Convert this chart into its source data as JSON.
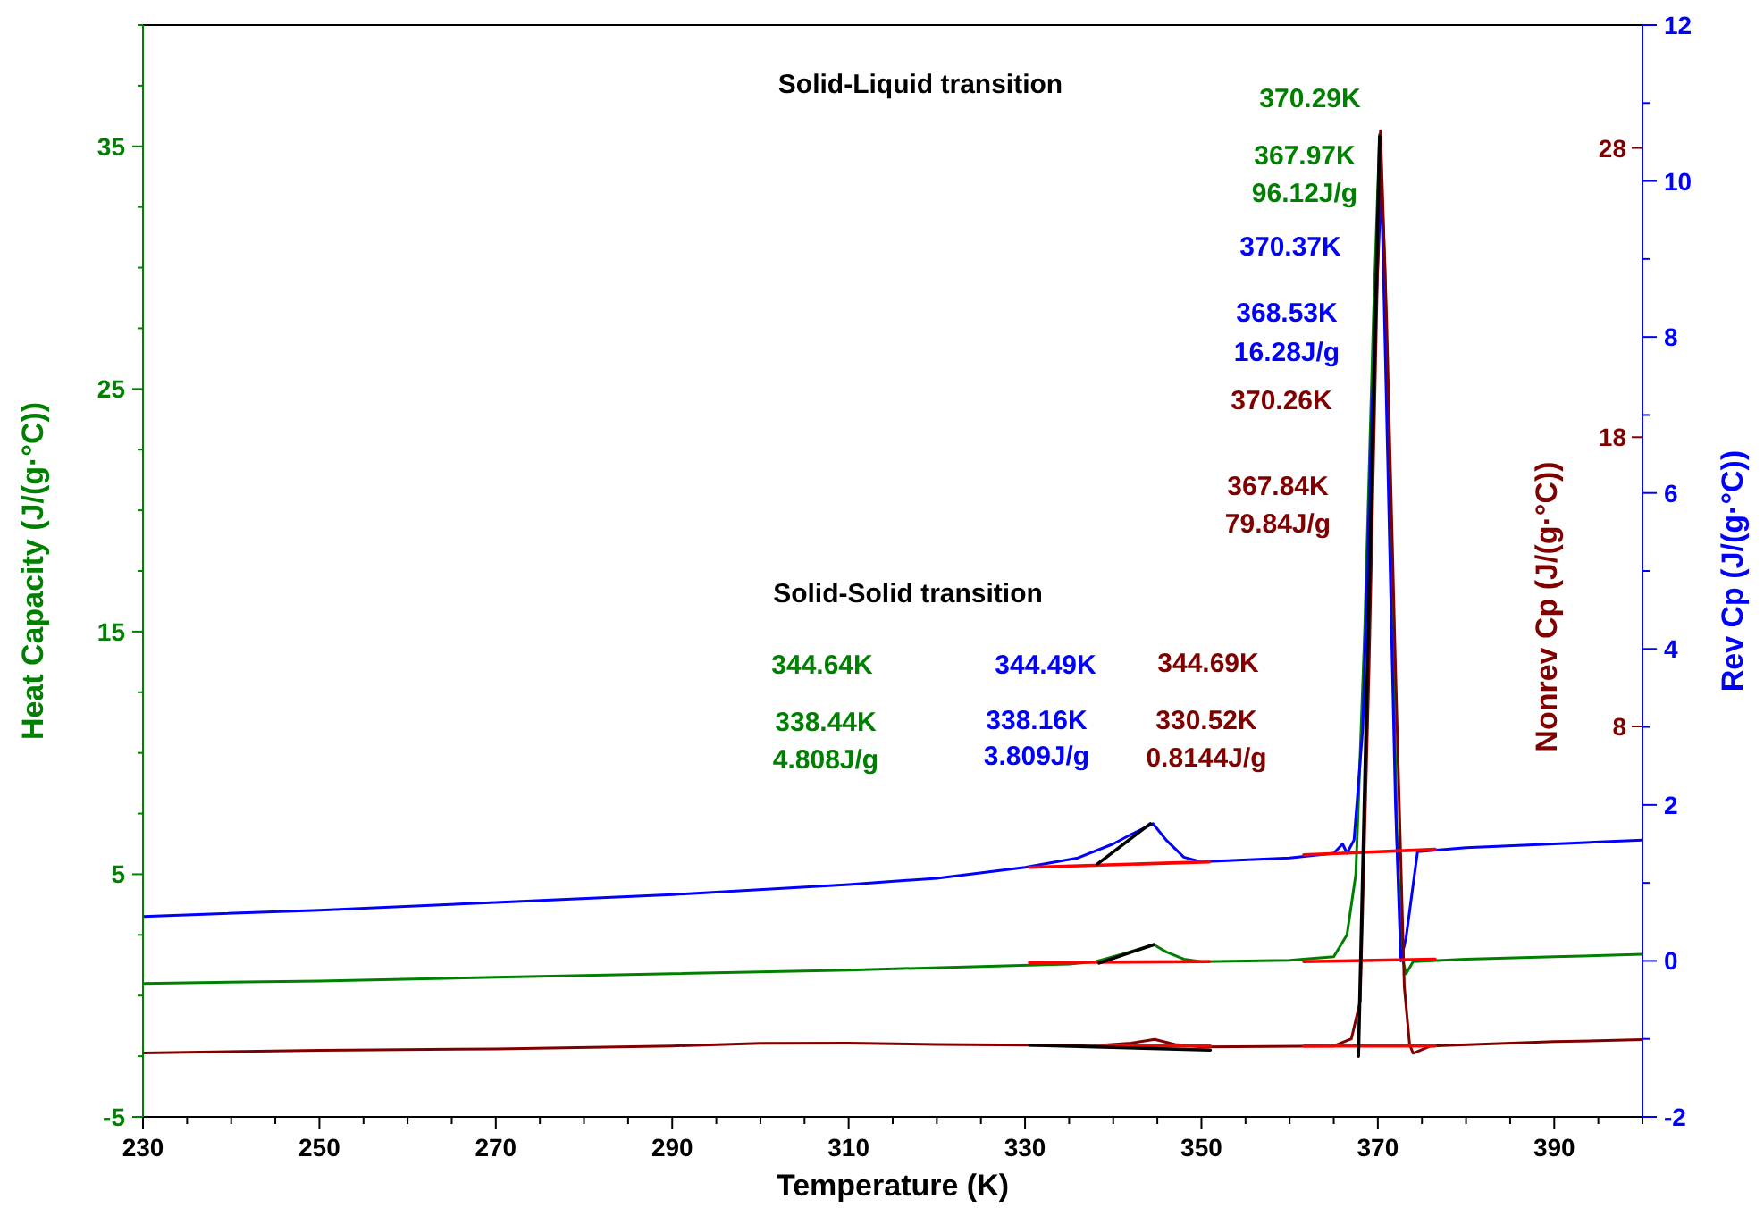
{
  "chart_data": {
    "type": "line",
    "xlabel": "Temperature (K)",
    "ylabel": "Heat Capacity (J/(g·°C))",
    "y2label": "Rev Cp (J/(g·°C))",
    "y3label": "Nonrev Cp (J/(g·°C))",
    "xlim": [
      230,
      400
    ],
    "xticks": [
      230,
      {
        "value": 235,
        "label": null
      },
      {
        "value": 240,
        "label": null
      },
      {
        "value": 245,
        "label": null
      },
      250,
      {
        "value": 255,
        "label": null
      },
      {
        "value": 260,
        "label": null
      },
      {
        "value": 265,
        "label": null
      },
      270,
      {
        "value": 275,
        "label": null
      },
      {
        "value": 280,
        "label": null
      },
      {
        "value": 285,
        "label": null
      },
      290,
      {
        "value": 295,
        "label": null
      },
      {
        "value": 300,
        "label": null
      },
      {
        "value": 305,
        "label": null
      },
      310,
      {
        "value": 315,
        "label": null
      },
      {
        "value": 320,
        "label": null
      },
      {
        "value": 325,
        "label": null
      },
      330,
      {
        "value": 335,
        "label": null
      },
      {
        "value": 340,
        "label": null
      },
      {
        "value": 345,
        "label": null
      },
      350,
      {
        "value": 355,
        "label": null
      },
      {
        "value": 360,
        "label": null
      },
      {
        "value": 365,
        "label": null
      },
      370,
      {
        "value": 375,
        "label": null
      },
      {
        "value": 380,
        "label": null
      },
      {
        "value": 385,
        "label": null
      },
      390,
      {
        "value": 395,
        "label": null
      },
      {
        "value": 400,
        "label": null
      }
    ],
    "ylim": [
      -5,
      40
    ],
    "yticks": [
      -5,
      {
        "value": -2.5,
        "label": null
      },
      {
        "value": 0,
        "label": null
      },
      {
        "value": 2.5,
        "label": null
      },
      5,
      {
        "value": 7.5,
        "label": null
      },
      {
        "value": 10,
        "label": null
      },
      {
        "value": 12.5,
        "label": null
      },
      15,
      {
        "value": 17.5,
        "label": null
      },
      {
        "value": 20,
        "label": null
      },
      {
        "value": 22.5,
        "label": null
      },
      25,
      {
        "value": 27.5,
        "label": null
      },
      {
        "value": 30,
        "label": null
      },
      {
        "value": 32.5,
        "label": null
      },
      35,
      {
        "value": 37.5,
        "label": null
      },
      {
        "value": 40,
        "label": null
      }
    ],
    "y2lim": [
      -2,
      12
    ],
    "y2ticks": [
      -2,
      {
        "value": -1,
        "label": null
      },
      0,
      {
        "value": 1,
        "label": null
      },
      2,
      {
        "value": 3,
        "label": null
      },
      4,
      {
        "value": 5,
        "label": null
      },
      6,
      {
        "value": 7,
        "label": null
      },
      8,
      {
        "value": 9,
        "label": null
      },
      10,
      {
        "value": 11,
        "label": null
      },
      12
    ],
    "y3lim": [
      -5.5,
      32.25
    ],
    "y3ticks": [
      8,
      18,
      28
    ],
    "grid": false,
    "series": [
      {
        "color": "#008000",
        "axis": "y",
        "x": [
          230,
          250,
          270,
          290,
          310,
          325,
          335,
          338,
          341,
          344.6,
          346,
          348,
          350,
          360,
          365,
          366.5,
          367.5,
          368.5,
          369.5,
          370.2,
          370.8,
          371.5,
          372.2,
          372.8,
          373.2,
          374,
          380,
          390,
          400
        ],
        "values": [
          0.5,
          0.6,
          0.75,
          0.9,
          1.05,
          1.2,
          1.3,
          1.4,
          1.7,
          2.1,
          1.8,
          1.5,
          1.4,
          1.45,
          1.6,
          2.5,
          5,
          15,
          28,
          35.5,
          30,
          18,
          6,
          1.5,
          0.9,
          1.4,
          1.5,
          1.6,
          1.7
        ]
      },
      {
        "color": "#0000ff",
        "axis": "y2",
        "x": [
          230,
          250,
          270,
          290,
          310,
          320,
          330,
          336,
          340,
          342,
          344.5,
          346,
          348,
          350,
          360,
          365,
          366,
          366.5,
          367.3,
          368.3,
          369.3,
          370.4,
          371.2,
          372,
          372.6,
          373.2,
          374.5,
          380,
          390,
          400
        ],
        "values": [
          0.57,
          0.65,
          0.75,
          0.85,
          0.98,
          1.06,
          1.2,
          1.32,
          1.5,
          1.62,
          1.76,
          1.55,
          1.33,
          1.27,
          1.32,
          1.38,
          1.5,
          1.38,
          1.55,
          3,
          7,
          10,
          6,
          2,
          0,
          0.3,
          1.4,
          1.45,
          1.5,
          1.55
        ]
      },
      {
        "color": "#800000",
        "axis": "y3",
        "x": [
          230,
          250,
          270,
          290,
          300,
          310,
          320,
          338,
          342,
          344.7,
          347,
          350,
          365,
          367,
          368,
          369,
          370.3,
          371,
          372,
          373,
          373.6,
          374,
          376,
          390,
          400
        ],
        "values": [
          -3.29,
          -3.2,
          -3.15,
          -3.05,
          -2.96,
          -2.95,
          -3,
          -3.04,
          -2.95,
          -2.82,
          -3,
          -3.08,
          -3.05,
          -2.8,
          -1.5,
          10,
          28.6,
          22,
          10,
          -1,
          -3,
          -3.3,
          -3.05,
          -2.9,
          -2.83
        ]
      },
      {
        "color": "#ff0000",
        "axis": "y2",
        "x": [
          330.5,
          350.9
        ],
        "values": [
          1.2,
          1.27
        ]
      },
      {
        "color": "#ff0000",
        "axis": "y2",
        "x": [
          361.6,
          376.5
        ],
        "values": [
          1.36,
          1.43
        ]
      },
      {
        "color": "#ff0000",
        "axis": "y",
        "x": [
          330.5,
          350.9
        ],
        "values": [
          1.36,
          1.4
        ]
      },
      {
        "color": "#ff0000",
        "axis": "y",
        "x": [
          361.6,
          376.5
        ],
        "values": [
          1.4,
          1.5
        ]
      },
      {
        "color": "#ff0000",
        "axis": "y3",
        "x": [
          337,
          351
        ],
        "values": [
          -3.05,
          -3.05
        ]
      },
      {
        "color": "#ff0000",
        "axis": "y3",
        "x": [
          361.6,
          376.5
        ],
        "values": [
          -3.05,
          -3.05
        ]
      },
      {
        "color": "#000000",
        "axis": "y2",
        "x": [
          338.2,
          344.2
        ],
        "values": [
          1.24,
          1.76
        ]
      },
      {
        "color": "#000000",
        "axis": "y",
        "x": [
          338.4,
          344.6
        ],
        "values": [
          1.34,
          2.1
        ]
      },
      {
        "color": "#000000",
        "axis": "y3",
        "x": [
          330.5,
          351
        ],
        "values": [
          -3.02,
          -3.19
        ]
      },
      {
        "color": "#000000",
        "axis": "y",
        "x": [
          367.8,
          370.2
        ],
        "values": [
          -2.5,
          35.4
        ]
      }
    ],
    "annotations": [
      "Solid-Liquid transition",
      "370.29K",
      "367.97K",
      "96.12J/g",
      "370.37K",
      "368.53K",
      "16.28J/g",
      "370.26K",
      "367.84K",
      "79.84J/g",
      "Solid-Solid transition",
      "344.64K",
      "344.49K",
      "344.69K",
      "338.44K",
      "4.808J/g",
      "338.16K",
      "3.809J/g",
      "330.52K",
      "0.8144J/g"
    ]
  }
}
